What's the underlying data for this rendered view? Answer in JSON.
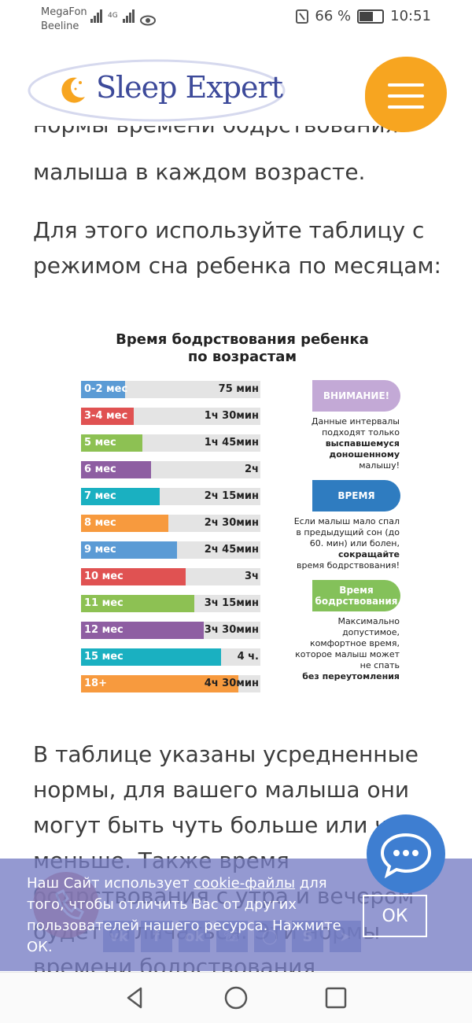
{
  "status": {
    "carrier1": "MegaFon",
    "carrier2": "Beeline",
    "net": "4G",
    "battery": "66 %",
    "battery_level": 0.66,
    "time": "10:51"
  },
  "header": {
    "logo": "Sleep Expert"
  },
  "article": {
    "cut_line": "нормы времени бодрствования",
    "para1_end": "малыша в каждом возрасте.",
    "para2": "Для этого используйте таблицу с режимом сна ребенка по месяцам:",
    "para3": "В таблице указаны усредненные нормы, для вашего малыша они могут быть чуть больше или чуть меньше. Также время бодрствования с утра и вечером будет отличаться. Эти нормы времени бодрствования"
  },
  "infographic": {
    "title_line1": "Время бодрствования ребенка",
    "title_line2": "по возрастам",
    "rows": [
      {
        "age": "0-2 мес",
        "dur": "75 мин",
        "minutes": 75,
        "color": "#5b9bd5"
      },
      {
        "age": "3-4 мес",
        "dur": "1ч 30мин",
        "minutes": 90,
        "color": "#e05252"
      },
      {
        "age": "5 мес",
        "dur": "1ч 45мин",
        "minutes": 105,
        "color": "#8dc153"
      },
      {
        "age": "6 мес",
        "dur": "2ч",
        "minutes": 120,
        "color": "#8e5ea2"
      },
      {
        "age": "7 мес",
        "dur": "2ч 15мин",
        "minutes": 135,
        "color": "#1ab0c1"
      },
      {
        "age": "8 мес",
        "dur": "2ч 30мин",
        "minutes": 150,
        "color": "#f79a3e"
      },
      {
        "age": "9 мес",
        "dur": "2ч 45мин",
        "minutes": 165,
        "color": "#5b9bd5"
      },
      {
        "age": "10 мес",
        "dur": "3ч",
        "minutes": 180,
        "color": "#e05252"
      },
      {
        "age": "11 мес",
        "dur": "3ч 15мин",
        "minutes": 195,
        "color": "#8dc153"
      },
      {
        "age": "12 мес",
        "dur": "3ч 30мин",
        "minutes": 210,
        "color": "#8e5ea2"
      },
      {
        "age": "15 мес",
        "dur": "4 ч.",
        "minutes": 240,
        "color": "#1ab0c1"
      },
      {
        "age": "18+",
        "dur": "4ч 30мин",
        "minutes": 270,
        "color": "#f79a3e"
      }
    ],
    "pill1": "ВНИМАНИЕ!",
    "note1_a": "Данные интервалы подходят только",
    "note1_b": "выспавшемуся доношенному",
    "note1_c": "малышу!",
    "pill2": "ВРЕМЯ",
    "note2_a": "Если малыш мало спал в предыдущий сон (до 60. мин) или болен,",
    "note2_b": "сокращайте",
    "note2_c": "время бодрствования!",
    "pill3": "Время бодрствования",
    "note3_a": "Максимально допустимое, комфортное время, которое малыш может не спать",
    "note3_b": "без переутомления",
    "colors": {
      "pill1": "#c3a9d6",
      "pill2": "#2f7cc0",
      "pill3": "#84c15a"
    }
  },
  "cookie": {
    "text_before": "Наш Сайт использует",
    "link": "cookie-файлы",
    "text_after": "для того, чтобы отличить Вас от других пользователей нашего ресурса. Нажмите ОК.",
    "ok": "ОК"
  },
  "share_icons": [
    "vk-icon",
    "facebook-icon",
    "odnoklassniki-icon",
    "viber-icon",
    "whatsapp-icon",
    "skype-icon",
    "telegram-icon"
  ],
  "colors": {
    "accent": "#f7a520",
    "brand": "#3d4a9a",
    "cookie_bg": "#767cc4",
    "chat": "#3e7ed1"
  }
}
